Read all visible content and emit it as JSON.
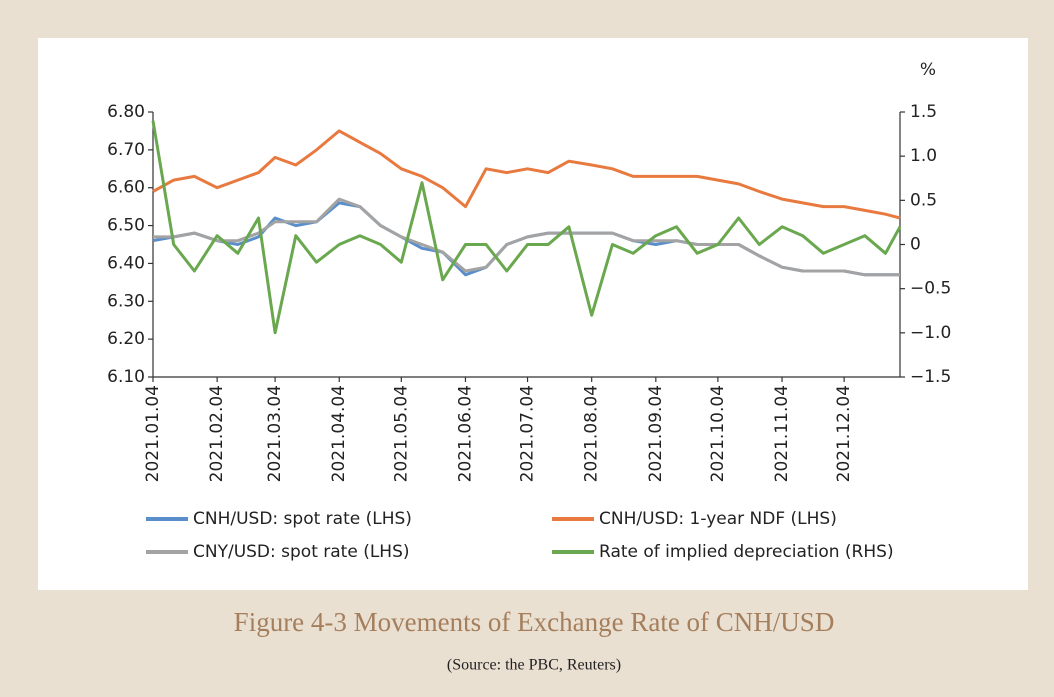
{
  "chart_data": {
    "type": "line",
    "caption": "Figure 4-3    Movements of Exchange Rate of CNH/USD",
    "source": "(Source: the PBC, Reuters)",
    "y2_label": "%",
    "x": [
      "2021.01.04",
      "2021.01.14",
      "2021.01.24",
      "2021.02.04",
      "2021.02.14",
      "2021.02.24",
      "2021.03.04",
      "2021.03.14",
      "2021.03.24",
      "2021.04.04",
      "2021.04.14",
      "2021.04.24",
      "2021.05.04",
      "2021.05.14",
      "2021.05.24",
      "2021.06.04",
      "2021.06.14",
      "2021.06.24",
      "2021.07.04",
      "2021.07.14",
      "2021.07.24",
      "2021.08.04",
      "2021.08.14",
      "2021.08.24",
      "2021.09.04",
      "2021.09.14",
      "2021.09.24",
      "2021.10.04",
      "2021.10.14",
      "2021.10.24",
      "2021.11.04",
      "2021.11.14",
      "2021.11.24",
      "2021.12.04",
      "2021.12.14",
      "2021.12.24",
      "2021.12.31"
    ],
    "xlim": [
      "2021.01.04",
      "2021.12.31"
    ],
    "xticks": [
      "2021.01.04",
      "2021.02.04",
      "2021.03.04",
      "2021.04.04",
      "2021.05.04",
      "2021.06.04",
      "2021.07.04",
      "2021.08.04",
      "2021.09.04",
      "2021.10.04",
      "2021.11.04",
      "2021.12.04"
    ],
    "ylim": [
      6.1,
      6.8
    ],
    "yticks": [
      {
        "value": 6.1,
        "label": "6.10"
      },
      {
        "value": 6.2,
        "label": "6.20"
      },
      {
        "value": 6.3,
        "label": "6.30"
      },
      {
        "value": 6.4,
        "label": "6.40"
      },
      {
        "value": 6.5,
        "label": "6.50"
      },
      {
        "value": 6.6,
        "label": "6.60"
      },
      {
        "value": 6.7,
        "label": "6.70"
      },
      {
        "value": 6.8,
        "label": "6.80"
      }
    ],
    "y2lim": [
      -1.5,
      1.5
    ],
    "y2ticks": [
      {
        "value": -1.5,
        "label": "−1.5"
      },
      {
        "value": -1.0,
        "label": "−1.0"
      },
      {
        "value": -0.5,
        "label": "−0.5"
      },
      0,
      0.5,
      {
        "value": 1.0,
        "label": "1.0"
      },
      1.5
    ],
    "series": [
      {
        "name": "CNH/USD: spot rate (LHS)",
        "color": "#5a8ecb",
        "values": [
          6.46,
          6.47,
          6.48,
          6.46,
          6.45,
          6.47,
          6.52,
          6.5,
          6.51,
          6.56,
          6.55,
          6.5,
          6.47,
          6.44,
          6.43,
          6.37,
          6.39,
          6.45,
          6.47,
          6.48,
          6.48,
          6.48,
          6.48,
          6.46,
          6.45,
          6.46,
          6.45,
          6.45,
          6.45,
          6.42,
          6.39,
          6.38,
          6.38,
          6.38,
          6.37,
          6.37,
          6.37
        ]
      },
      {
        "name": "CNH/USD: 1-year NDF (LHS)",
        "color": "#e8793f",
        "values": [
          6.59,
          6.62,
          6.63,
          6.6,
          6.62,
          6.64,
          6.68,
          6.66,
          6.7,
          6.75,
          6.72,
          6.69,
          6.65,
          6.63,
          6.6,
          6.55,
          6.65,
          6.64,
          6.65,
          6.64,
          6.67,
          6.66,
          6.65,
          6.63,
          6.63,
          6.63,
          6.63,
          6.62,
          6.61,
          6.59,
          6.57,
          6.56,
          6.55,
          6.55,
          6.54,
          6.53,
          6.52
        ]
      },
      {
        "name": "CNY/USD: spot rate (LHS)",
        "color": "#a3a3a3",
        "values": [
          6.47,
          6.47,
          6.48,
          6.46,
          6.46,
          6.48,
          6.51,
          6.51,
          6.51,
          6.57,
          6.55,
          6.5,
          6.47,
          6.45,
          6.43,
          6.38,
          6.39,
          6.45,
          6.47,
          6.48,
          6.48,
          6.48,
          6.48,
          6.46,
          6.46,
          6.46,
          6.45,
          6.45,
          6.45,
          6.42,
          6.39,
          6.38,
          6.38,
          6.38,
          6.37,
          6.37,
          6.37
        ]
      },
      {
        "name": "Rate of implied depreciation (RHS)",
        "color": "#6aa84f",
        "axis": "y2",
        "values": [
          1.4,
          0.0,
          -0.3,
          0.1,
          -0.1,
          0.3,
          -1.0,
          0.1,
          -0.2,
          0.0,
          0.1,
          0.0,
          -0.2,
          0.7,
          -0.4,
          0.0,
          0.0,
          -0.3,
          0.0,
          0.0,
          0.2,
          -0.8,
          0.0,
          -0.1,
          0.1,
          0.2,
          -0.1,
          0.0,
          0.3,
          0.0,
          0.2,
          0.1,
          -0.1,
          0.0,
          0.1,
          -0.1,
          0.2
        ]
      }
    ]
  }
}
